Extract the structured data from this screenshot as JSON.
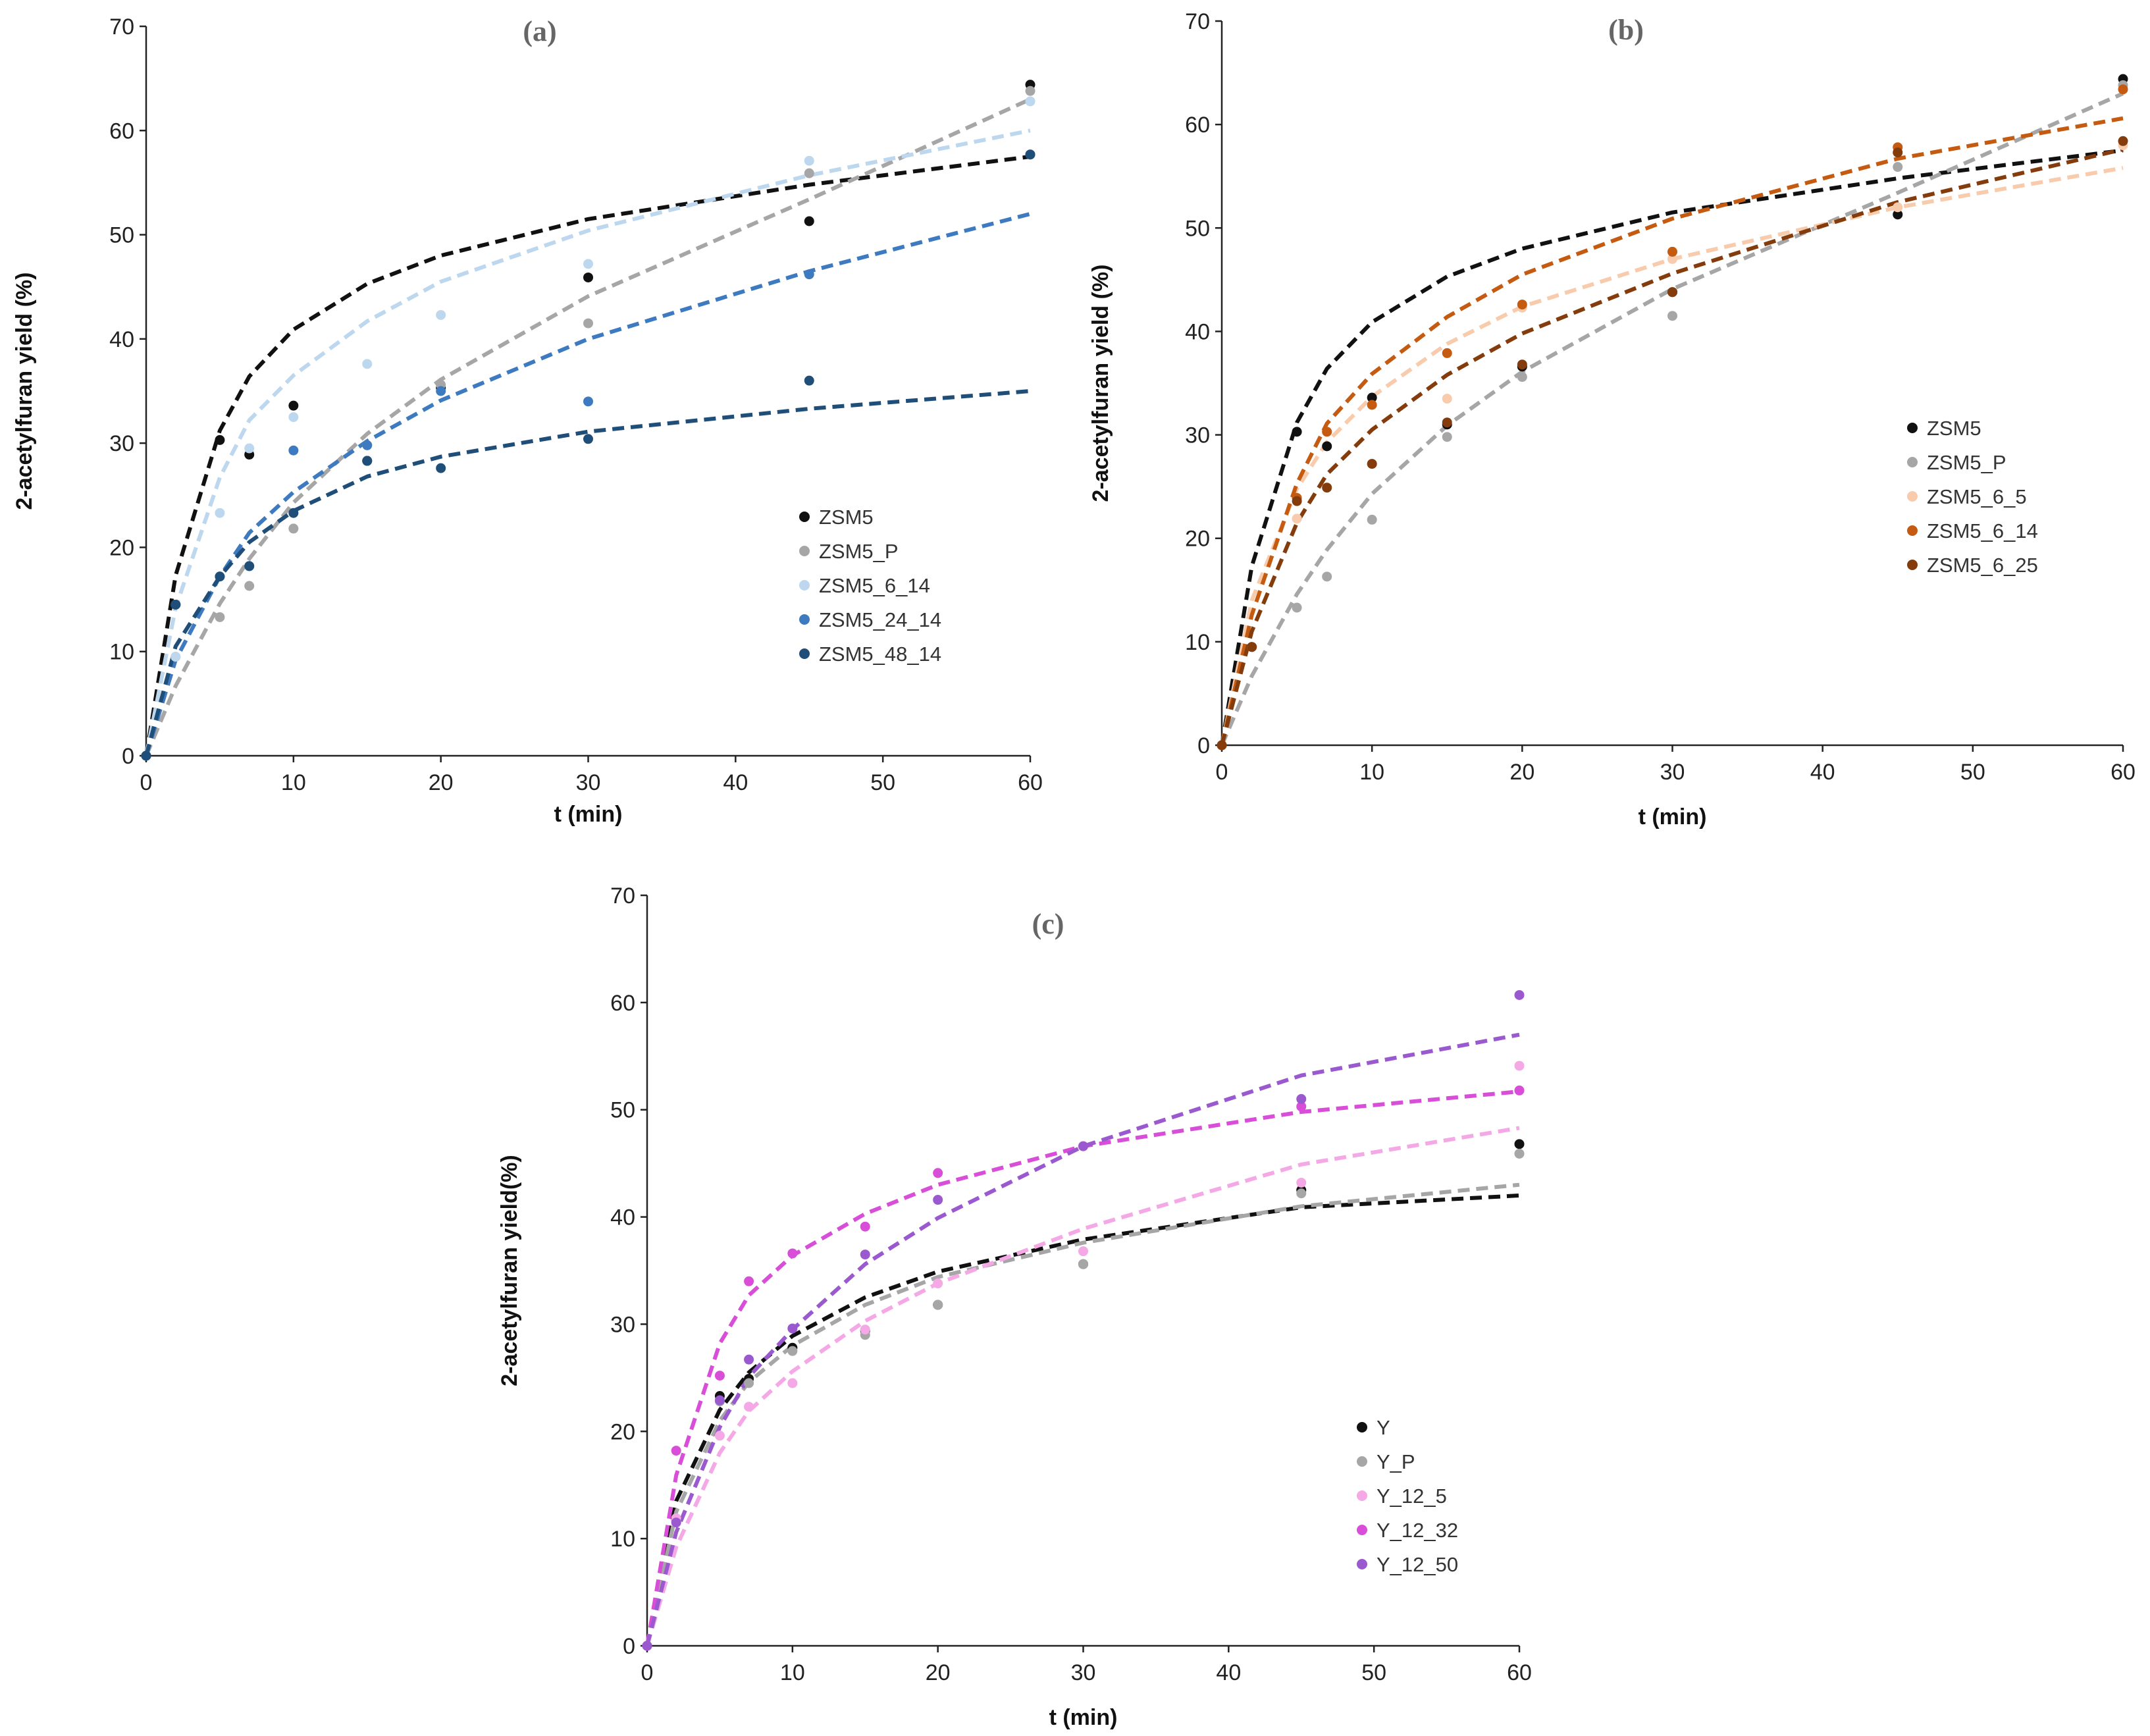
{
  "chart_data": [
    {
      "type": "scatter",
      "panel_label": "(a)",
      "xlabel": "t (min)",
      "ylabel": "2-acetylfuran yield (%)",
      "xlim": [
        0,
        60
      ],
      "ylim": [
        0,
        70
      ],
      "xticks": [
        0,
        10,
        20,
        30,
        40,
        50,
        60
      ],
      "yticks": [
        0,
        10,
        20,
        30,
        40,
        50,
        60,
        70
      ],
      "x": [
        0,
        2,
        5,
        7,
        10,
        15,
        20,
        30,
        45,
        60
      ],
      "series": [
        {
          "name": "ZSM5",
          "color": "#111111",
          "values": [
            0,
            14.5,
            30.3,
            28.9,
            33.6,
            28.3,
            35.3,
            45.9,
            51.3,
            64.4
          ],
          "fit_values": [
            0,
            17.3,
            31.2,
            36.4,
            40.9,
            45.3,
            48.0,
            51.5,
            54.8,
            57.5
          ]
        },
        {
          "name": "ZSM5_P",
          "color": "#a6a6a6",
          "values": [
            0,
            9.5,
            13.3,
            16.3,
            21.8,
            29.8,
            35.6,
            41.5,
            55.9,
            63.8
          ],
          "fit_values": [
            0,
            6.7,
            14.6,
            18.9,
            24.3,
            30.9,
            36.1,
            44.1,
            53.4,
            63.0
          ]
        },
        {
          "name": "ZSM5_6_14",
          "color": "#bdd7ee",
          "values": [
            0,
            9.5,
            23.3,
            29.5,
            32.5,
            37.6,
            42.3,
            47.2,
            57.1,
            62.8
          ],
          "fit_values": [
            0,
            14.2,
            26.7,
            32.2,
            36.5,
            41.7,
            45.5,
            50.4,
            55.7,
            60.0
          ]
        },
        {
          "name": "ZSM5_24_14",
          "color": "#3d7ac0",
          "values": [
            0,
            14.5,
            17.2,
            18.2,
            29.3,
            29.8,
            35.0,
            34.0,
            46.2,
            57.7
          ],
          "fit_values": [
            0,
            9.2,
            17.2,
            21.4,
            25.3,
            30.2,
            34.1,
            40.0,
            46.5,
            52.0
          ]
        },
        {
          "name": "ZSM5_48_14",
          "color": "#1f4e79",
          "values": [
            0,
            14.5,
            17.2,
            18.2,
            23.3,
            28.3,
            27.6,
            30.4,
            36.0,
            57.7
          ],
          "fit_values": [
            0,
            10.5,
            17.2,
            20.5,
            23.5,
            26.8,
            28.7,
            31.1,
            33.3,
            35.0
          ]
        }
      ]
    },
    {
      "type": "scatter",
      "panel_label": "(b)",
      "xlabel": "t (min)",
      "ylabel": "2-acetylfuran yield (%)",
      "xlim": [
        0,
        60
      ],
      "ylim": [
        0,
        70
      ],
      "xticks": [
        0,
        10,
        20,
        30,
        40,
        50,
        60
      ],
      "yticks": [
        0,
        10,
        20,
        30,
        40,
        50,
        60,
        70
      ],
      "x": [
        0,
        2,
        5,
        7,
        10,
        15,
        20,
        30,
        45,
        60
      ],
      "series": [
        {
          "name": "ZSM5",
          "color": "#111111",
          "values": [
            0,
            9.5,
            30.3,
            28.9,
            33.6,
            31.0,
            36.6,
            43.8,
            51.3,
            64.4
          ],
          "fit_values": [
            0,
            17.3,
            31.2,
            36.4,
            40.9,
            45.3,
            48.0,
            51.5,
            54.8,
            57.5
          ]
        },
        {
          "name": "ZSM5_P",
          "color": "#a6a6a6",
          "values": [
            0,
            9.5,
            13.3,
            16.3,
            21.8,
            29.8,
            35.6,
            41.5,
            55.9,
            63.8
          ],
          "fit_values": [
            0,
            6.7,
            14.6,
            18.9,
            24.3,
            30.9,
            36.1,
            44.1,
            53.4,
            63.0
          ]
        },
        {
          "name": "ZSM5_6_5",
          "color": "#f8cbad",
          "values": [
            0,
            9.5,
            21.9,
            24.9,
            27.2,
            33.5,
            42.3,
            47.0,
            52.0,
            58.0
          ],
          "fit_values": [
            0,
            14.0,
            24.8,
            29.3,
            33.7,
            38.8,
            42.4,
            47.0,
            52.0,
            55.8
          ]
        },
        {
          "name": "ZSM5_6_14",
          "color": "#c55a11",
          "values": [
            0,
            9.5,
            23.9,
            30.3,
            32.9,
            37.9,
            42.6,
            47.7,
            57.8,
            63.4
          ],
          "fit_values": [
            0,
            12.6,
            25.3,
            31.1,
            35.9,
            41.4,
            45.5,
            50.9,
            56.7,
            60.6
          ]
        },
        {
          "name": "ZSM5_6_25",
          "color": "#843c0c",
          "values": [
            0,
            9.5,
            23.6,
            24.9,
            27.2,
            31.2,
            36.8,
            43.8,
            57.3,
            58.4
          ],
          "fit_values": [
            0,
            11.0,
            21.5,
            26.2,
            30.5,
            35.8,
            39.8,
            45.6,
            52.5,
            57.6
          ]
        }
      ]
    },
    {
      "type": "scatter",
      "panel_label": "(c)",
      "xlabel": "t (min)",
      "ylabel": "2-acetylfuran yield(%)",
      "xlim": [
        0,
        60
      ],
      "ylim": [
        0,
        70
      ],
      "xticks": [
        0,
        10,
        20,
        30,
        40,
        50,
        60
      ],
      "yticks": [
        0,
        10,
        20,
        30,
        40,
        50,
        60,
        70
      ],
      "x": [
        0,
        2,
        5,
        7,
        10,
        15,
        20,
        30,
        45,
        60
      ],
      "series": [
        {
          "name": "Y",
          "color": "#111111",
          "values": [
            0,
            11.8,
            23.3,
            24.9,
            27.8,
            29.4,
            31.8,
            35.6,
            42.5,
            46.8
          ],
          "fit_values": [
            0,
            13.5,
            22.0,
            25.5,
            28.9,
            32.5,
            34.9,
            37.9,
            40.9,
            42.0
          ]
        },
        {
          "name": "Y_P",
          "color": "#a6a6a6",
          "values": [
            0,
            11.6,
            22.8,
            24.5,
            27.5,
            29.0,
            31.8,
            35.6,
            42.2,
            45.9
          ],
          "fit_values": [
            0,
            12.5,
            21.0,
            24.6,
            28.0,
            31.8,
            34.4,
            37.6,
            41.0,
            43.0
          ]
        },
        {
          "name": "Y_12_5",
          "color": "#f4a9e6",
          "values": [
            0,
            11.9,
            19.6,
            22.3,
            24.5,
            29.5,
            33.8,
            36.8,
            43.2,
            54.1
          ],
          "fit_values": [
            0,
            9.2,
            18.0,
            21.9,
            25.6,
            30.3,
            33.8,
            38.9,
            44.9,
            48.3
          ]
        },
        {
          "name": "Y_12_32",
          "color": "#d84ed8",
          "values": [
            0,
            18.2,
            25.2,
            34.0,
            36.6,
            39.1,
            44.1,
            46.6,
            50.3,
            51.8
          ],
          "fit_values": [
            0,
            15.9,
            28.2,
            32.7,
            36.4,
            40.3,
            43.0,
            46.6,
            49.8,
            51.7
          ]
        },
        {
          "name": "Y_12_50",
          "color": "#9b59d0",
          "values": [
            0,
            11.5,
            22.9,
            26.7,
            29.6,
            36.5,
            41.6,
            46.6,
            51.0,
            60.7
          ],
          "fit_values": [
            0,
            10.6,
            20.4,
            25.1,
            29.5,
            35.6,
            39.9,
            46.6,
            53.2,
            57.0
          ]
        }
      ]
    }
  ]
}
